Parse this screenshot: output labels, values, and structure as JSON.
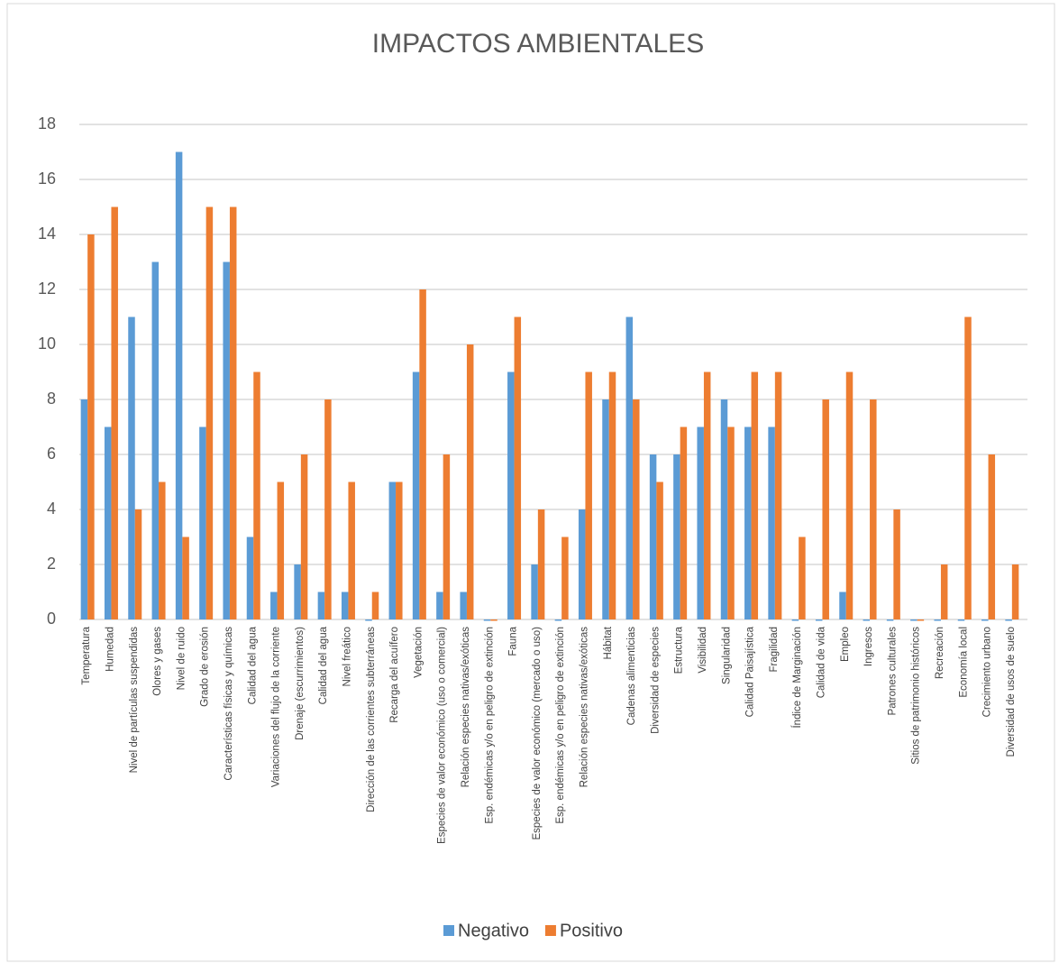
{
  "chart_data": {
    "type": "bar",
    "title": "IMPACTOS AMBIENTALES",
    "categories": [
      "Temperatura",
      "Humedad",
      "Nivel de partículas suspendidas",
      "Olores y gases",
      "Nivel de ruido",
      "Grado de erosión",
      "Características físicas y químicas",
      "Calidad del agua",
      "Variaciones del flujo de la corriente",
      "Drenaje (escurrimientos)",
      "Calidad del agua",
      "Nivel freático",
      "Dirección de las corrientes subterráneas",
      "Recarga del acuífero",
      "Vegetación",
      "Especies de valor económico (uso o comercial)",
      "Relación especies nativas/exóticas",
      "Esp. endémicas y/o en peligro de extinción",
      "Fauna",
      "Especies de valor económico (mercado o uso)",
      "Esp. endémicas y/o en peligro de extinción",
      "Relación especies nativas/exóticas",
      "Hábitat",
      "Cadenas alimenticias",
      "Diversidad de especies",
      "Estructura",
      "Visibilidad",
      "Singularidad",
      "Calidad Paisajística",
      "Fragilidad",
      "Índice de Marginación",
      "Calidad de vida",
      "Empleo",
      "Ingresos",
      "Patrones  culturales",
      "Sitios de patrimonio históricos",
      "Recreación",
      "Economía local",
      "Crecimiento urbano",
      "Diversidad de usos de suelo"
    ],
    "series": [
      {
        "name": "Negativo",
        "color": "#5b9bd5",
        "values": [
          8,
          7,
          11,
          13,
          17,
          7,
          13,
          3,
          1,
          2,
          1,
          1,
          0,
          5,
          9,
          1,
          1,
          0,
          9,
          2,
          0,
          4,
          8,
          11,
          6,
          6,
          7,
          8,
          7,
          7,
          0,
          0,
          1,
          0,
          0,
          0,
          0,
          0,
          0,
          0
        ]
      },
      {
        "name": "Positivo",
        "color": "#ed7d31",
        "values": [
          14,
          15,
          4,
          5,
          3,
          15,
          15,
          9,
          5,
          6,
          8,
          5,
          1,
          5,
          12,
          6,
          10,
          0,
          11,
          4,
          3,
          9,
          9,
          8,
          5,
          7,
          9,
          7,
          9,
          9,
          3,
          8,
          9,
          8,
          4,
          0,
          2,
          11,
          6,
          2
        ]
      }
    ],
    "ylim": [
      0,
      18
    ],
    "yticks": [
      0,
      2,
      4,
      6,
      8,
      10,
      12,
      14,
      16,
      18
    ],
    "grid": true,
    "legend": "bottom"
  }
}
